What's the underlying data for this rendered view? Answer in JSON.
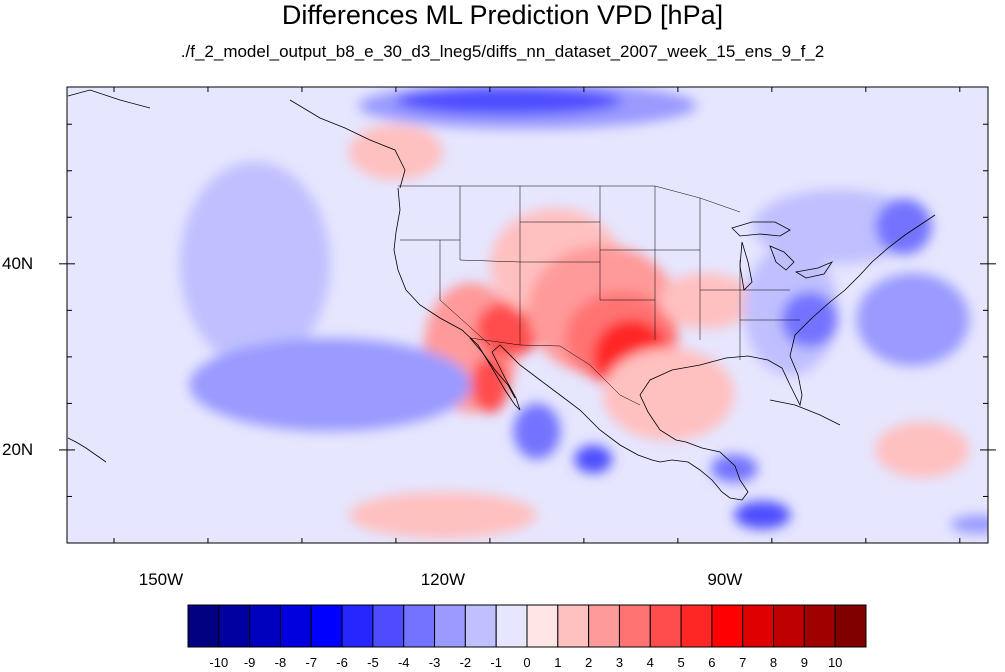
{
  "title": "Differences ML Prediction VPD [hPa]",
  "subtitle": "./f_2_model_output_b8_e_30_d3_lneg5/diffs_nn_dataset_2007_week_15_ens_9_f_2",
  "map": {
    "lon_range": [
      -160,
      -62
    ],
    "lat_range": [
      10,
      59
    ],
    "lat_ticks": [
      {
        "lat": 40,
        "label": "40N"
      },
      {
        "lat": 20,
        "label": "20N"
      }
    ],
    "lon_ticks": [
      {
        "lon": -150,
        "label": "150W"
      },
      {
        "lon": -120,
        "label": "120W"
      },
      {
        "lon": -90,
        "label": "90W"
      }
    ],
    "background_level": "-1",
    "anomalies": [
      {
        "lon": -117,
        "lat": 31,
        "rx": 5,
        "ry": 7,
        "level": "2"
      },
      {
        "lon": -113,
        "lat": 33,
        "rx": 3.5,
        "ry": 3,
        "level": "4"
      },
      {
        "lon": -108,
        "lat": 40,
        "rx": 7,
        "ry": 6,
        "level": "1"
      },
      {
        "lon": -103,
        "lat": 35,
        "rx": 8,
        "ry": 7,
        "level": "2"
      },
      {
        "lon": -101,
        "lat": 32,
        "rx": 6,
        "ry": 5,
        "level": "3"
      },
      {
        "lon": -100,
        "lat": 30,
        "rx": 4,
        "ry": 4,
        "level": "5"
      },
      {
        "lon": -99,
        "lat": 28,
        "rx": 2.5,
        "ry": 2.5,
        "level": "7"
      },
      {
        "lon": -96,
        "lat": 26,
        "rx": 7,
        "ry": 5,
        "level": "1"
      },
      {
        "lon": -115,
        "lat": 27,
        "rx": 2,
        "ry": 3,
        "level": "4"
      },
      {
        "lon": -92,
        "lat": 36,
        "rx": 5,
        "ry": 3,
        "level": "1"
      },
      {
        "lon": -83,
        "lat": 35,
        "rx": 5,
        "ry": 7,
        "level": "-2"
      },
      {
        "lon": -81,
        "lat": 34,
        "rx": 3,
        "ry": 3,
        "level": "-4"
      },
      {
        "lon": -78,
        "lat": 44,
        "rx": 9,
        "ry": 4,
        "level": "-2"
      },
      {
        "lon": -71,
        "lat": 44,
        "rx": 3,
        "ry": 3,
        "level": "-4"
      },
      {
        "lon": -70,
        "lat": 34,
        "rx": 6,
        "ry": 5,
        "level": "-3"
      },
      {
        "lon": -111,
        "lat": 57,
        "rx": 18,
        "ry": 2.5,
        "level": "-3"
      },
      {
        "lon": -113,
        "lat": 57.5,
        "rx": 12,
        "ry": 1.5,
        "level": "-5"
      },
      {
        "lon": -140,
        "lat": 40,
        "rx": 8,
        "ry": 11,
        "level": "-2"
      },
      {
        "lon": -132,
        "lat": 27,
        "rx": 15,
        "ry": 5,
        "level": "-3"
      },
      {
        "lon": -110,
        "lat": 22,
        "rx": 2.5,
        "ry": 3,
        "level": "-4"
      },
      {
        "lon": -104,
        "lat": 19,
        "rx": 2,
        "ry": 1.5,
        "level": "-5"
      },
      {
        "lon": -89,
        "lat": 18,
        "rx": 2.5,
        "ry": 1.5,
        "level": "-4"
      },
      {
        "lon": -86,
        "lat": 13,
        "rx": 3,
        "ry": 1.5,
        "level": "-5"
      },
      {
        "lon": -120,
        "lat": 13,
        "rx": 10,
        "ry": 2.5,
        "level": "1"
      },
      {
        "lon": -125,
        "lat": 52,
        "rx": 5,
        "ry": 3,
        "level": "1"
      },
      {
        "lon": -69,
        "lat": 20,
        "rx": 5,
        "ry": 3,
        "level": "1"
      },
      {
        "lon": -63,
        "lat": 12,
        "rx": 3,
        "ry": 1,
        "level": "-3"
      }
    ]
  },
  "colorbar": {
    "colors": [
      "#000080",
      "#0000a0",
      "#0000bf",
      "#0000df",
      "#0000ff",
      "#2626ff",
      "#4d4dff",
      "#7373ff",
      "#9a9aff",
      "#c0c0ff",
      "#e6e6ff",
      "#ffe6e6",
      "#ffc0c0",
      "#ff9a9a",
      "#ff7373",
      "#ff4d4d",
      "#ff2626",
      "#ff0000",
      "#df0000",
      "#bf0000",
      "#a00000",
      "#800000"
    ],
    "labels": [
      "-10",
      "-9",
      "-8",
      "-7",
      "-6",
      "-5",
      "-4",
      "-3",
      "-2",
      "-1",
      "0",
      "1",
      "2",
      "3",
      "4",
      "5",
      "6",
      "7",
      "8",
      "9",
      "10"
    ]
  }
}
